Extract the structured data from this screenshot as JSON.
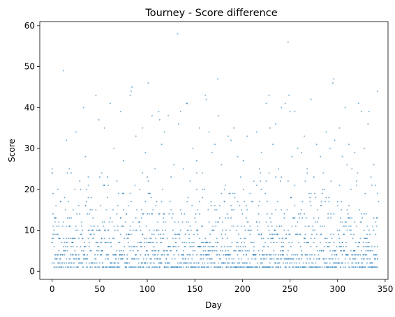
{
  "chart_data": {
    "type": "scatter",
    "title": "Tourney - Score difference",
    "xlabel": "Day",
    "ylabel": "Score",
    "xlim": [
      -13,
      353
    ],
    "ylim": [
      -2,
      61
    ],
    "xticks": [
      0,
      50,
      100,
      150,
      200,
      250,
      300,
      350
    ],
    "yticks": [
      0,
      10,
      20,
      30,
      40,
      50,
      60
    ],
    "grid": false,
    "legend": "none",
    "marker_color": "#1f77b4",
    "marker_alpha": 0.6,
    "series": [
      {
        "x": [
          0,
          0,
          1,
          3,
          5,
          9,
          12,
          15,
          18,
          22,
          25,
          31,
          33,
          35,
          38,
          42,
          46,
          49,
          52,
          55,
          58,
          61,
          65,
          68,
          72,
          75,
          78,
          82,
          83,
          84,
          88,
          92,
          95,
          98,
          101,
          105,
          108,
          112,
          113,
          115,
          118,
          122,
          125,
          128,
          132,
          133,
          135,
          138,
          141,
          142,
          145,
          148,
          152,
          155,
          158,
          161,
          162,
          165,
          168,
          171,
          174,
          175,
          178,
          182,
          185,
          188,
          191,
          195,
          198,
          201,
          205,
          208,
          212,
          215,
          218,
          220,
          225,
          228,
          229,
          232,
          235,
          238,
          241,
          245,
          248,
          249,
          250,
          252,
          255,
          258,
          262,
          265,
          268,
          272,
          275,
          278,
          282,
          285,
          288,
          292,
          295,
          296,
          297,
          302,
          305,
          308,
          310,
          312,
          315,
          318,
          322,
          325,
          328,
          332,
          333,
          335,
          336,
          338,
          342,
          343
        ],
        "y": [
          25,
          24,
          19,
          13,
          9,
          17,
          49,
          32,
          25,
          15,
          34,
          12,
          40,
          28,
          21,
          10,
          43,
          37,
          24,
          35,
          18,
          41,
          30,
          22,
          39,
          27,
          14,
          43,
          44,
          45,
          33,
          20,
          35,
          29,
          46,
          38,
          25,
          39,
          37,
          31,
          34,
          38,
          23,
          26,
          58,
          36,
          39,
          25,
          41,
          41,
          22,
          30,
          27,
          35,
          24,
          43,
          42,
          34,
          29,
          31,
          47,
          38,
          26,
          21,
          33,
          32,
          35,
          28,
          23,
          27,
          33,
          19,
          22,
          34,
          25,
          29,
          41,
          43,
          35,
          31,
          36,
          25,
          40,
          41,
          56,
          43,
          39,
          28,
          39,
          30,
          29,
          33,
          25,
          42,
          23,
          31,
          28,
          24,
          34,
          30,
          46,
          47,
          32,
          35,
          28,
          40,
          26,
          31,
          25,
          29,
          41,
          39,
          30,
          36,
          39,
          23,
          21,
          26,
          44,
          17
        ]
      }
    ]
  }
}
